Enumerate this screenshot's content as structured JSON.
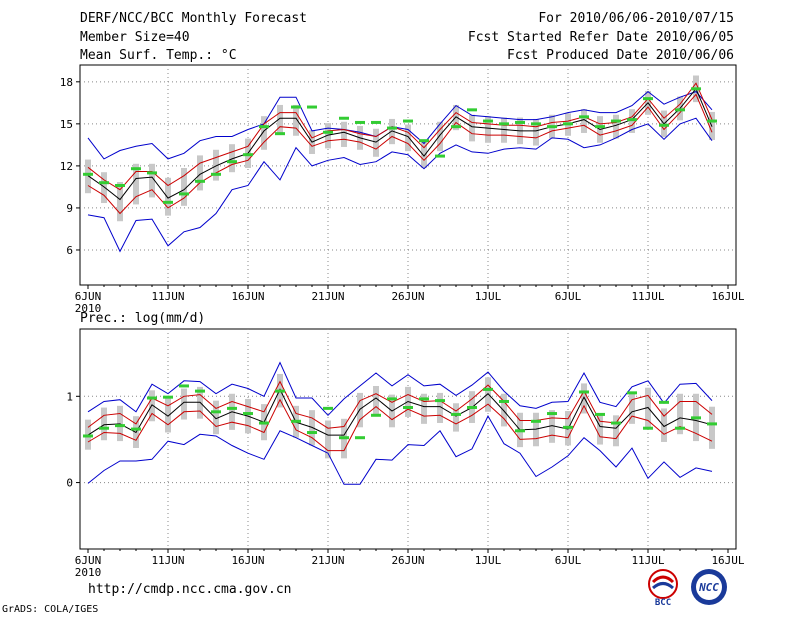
{
  "header": {
    "line1_left": "DERF/NCC/BCC Monthly Forecast",
    "line2_left": "Member Size=40",
    "line3_left": "Mean Surf. Temp.: °C",
    "line1_right": "For 2010/06/06-2010/07/15",
    "line2_right": "Fcst Started Refer Date 2010/06/05",
    "line3_right": "Fcst Produced Date 2010/06/06"
  },
  "footer": {
    "url": "http://cmdp.ncc.cma.gov.cn",
    "credit": "GrADS: COLA/IGES",
    "logo1_text": "BCC",
    "logo2_text": "NCC"
  },
  "chart_data": [
    {
      "type": "line",
      "name": "temperature",
      "title": "Mean Surf. Temp.: °C",
      "x_tick_labels": [
        "6JUN",
        "11JUN",
        "16JUN",
        "21JUN",
        "26JUN",
        "1JUL",
        "6JUL",
        "11JUL",
        "16JUL"
      ],
      "x_tick_days": [
        1,
        6,
        11,
        16,
        21,
        26,
        31,
        36,
        41
      ],
      "year_label": "2010",
      "xlim": [
        0.5,
        41.5
      ],
      "y_ticks": [
        6,
        9,
        12,
        15,
        18
      ],
      "ylim": [
        3.5,
        19.2
      ],
      "days": [
        1,
        2,
        3,
        4,
        5,
        6,
        7,
        8,
        9,
        10,
        11,
        12,
        13,
        14,
        15,
        16,
        17,
        18,
        19,
        20,
        21,
        22,
        23,
        24,
        25,
        26,
        27,
        28,
        29,
        30,
        31,
        32,
        33,
        34,
        35,
        36,
        37,
        38,
        39,
        40
      ],
      "series": [
        {
          "name": "ensemble_max",
          "color": "#0000cc",
          "values": [
            14.0,
            12.5,
            13.1,
            13.4,
            13.6,
            12.5,
            12.9,
            13.8,
            14.1,
            14.1,
            14.6,
            15.0,
            16.9,
            16.9,
            14.5,
            14.7,
            14.6,
            14.4,
            14.1,
            14.8,
            14.6,
            13.6,
            15.0,
            16.3,
            15.6,
            15.5,
            15.4,
            15.3,
            15.3,
            15.5,
            15.8,
            16.0,
            15.8,
            15.8,
            16.3,
            17.3,
            16.4,
            16.9,
            17.3,
            16.0
          ]
        },
        {
          "name": "ensemble_mean_plus_std",
          "color": "#cc0000",
          "values": [
            11.9,
            11.0,
            10.3,
            11.6,
            11.6,
            10.6,
            11.3,
            12.2,
            12.6,
            13.0,
            13.4,
            15.0,
            15.8,
            15.8,
            14.0,
            14.5,
            14.6,
            14.3,
            14.1,
            14.8,
            14.4,
            13.3,
            14.6,
            15.8,
            15.1,
            15.0,
            14.9,
            14.9,
            14.8,
            15.1,
            15.2,
            15.5,
            15.0,
            15.1,
            15.5,
            16.8,
            15.4,
            16.4,
            17.9,
            15.3
          ]
        },
        {
          "name": "ensemble_mean",
          "color": "#000000",
          "values": [
            11.3,
            10.5,
            9.6,
            11.1,
            11.2,
            9.7,
            10.3,
            11.4,
            12.0,
            12.5,
            12.9,
            14.5,
            15.4,
            15.4,
            13.7,
            14.2,
            14.4,
            14.0,
            13.7,
            14.5,
            14.1,
            12.7,
            14.2,
            15.5,
            14.8,
            14.7,
            14.6,
            14.5,
            14.5,
            14.8,
            15.0,
            15.3,
            14.6,
            14.9,
            15.3,
            16.5,
            15.0,
            16.1,
            17.5,
            14.8
          ]
        },
        {
          "name": "ensemble_mean_minus_std",
          "color": "#cc0000",
          "values": [
            10.6,
            9.9,
            8.6,
            9.8,
            10.3,
            9.0,
            9.7,
            10.8,
            11.5,
            12.1,
            12.4,
            13.7,
            14.8,
            14.7,
            13.4,
            13.8,
            13.9,
            13.7,
            13.2,
            14.1,
            13.6,
            12.4,
            13.6,
            15.1,
            14.3,
            14.2,
            14.2,
            14.1,
            14.0,
            14.5,
            14.7,
            14.9,
            14.2,
            14.5,
            14.9,
            16.2,
            14.6,
            15.8,
            17.1,
            14.4
          ]
        },
        {
          "name": "ensemble_min",
          "color": "#0000cc",
          "values": [
            8.5,
            8.3,
            5.9,
            8.1,
            8.2,
            6.3,
            7.3,
            7.6,
            8.6,
            10.3,
            10.6,
            12.3,
            11.0,
            13.3,
            12.0,
            12.4,
            12.6,
            12.1,
            12.3,
            13.0,
            12.8,
            11.8,
            12.9,
            13.5,
            13.0,
            12.9,
            13.2,
            13.3,
            13.2,
            14.0,
            13.9,
            13.3,
            13.5,
            14.0,
            14.6,
            15.0,
            13.9,
            15.0,
            15.4,
            13.8
          ]
        },
        {
          "name": "observation_marker",
          "color": "#33cc33",
          "values": [
            11.4,
            10.8,
            10.6,
            11.8,
            11.5,
            9.4,
            10.0,
            10.9,
            11.4,
            12.3,
            12.8,
            14.8,
            14.3,
            16.2,
            16.2,
            14.4,
            15.4,
            15.1,
            15.1,
            14.7,
            15.2,
            13.8,
            12.7,
            14.8,
            16.0,
            15.2,
            15.0,
            15.1,
            15.0,
            14.8,
            15.0,
            15.5,
            14.8,
            15.2,
            15.3,
            16.8,
            14.9,
            16.0,
            17.5,
            15.2
          ]
        }
      ],
      "spread_bar_color": "#c8c8c8"
    },
    {
      "type": "line",
      "name": "precipitation",
      "title": "Prec.: log(mm/d)",
      "x_tick_labels": [
        "6JUN",
        "11JUN",
        "16JUN",
        "21JUN",
        "26JUN",
        "1JUL",
        "6JUL",
        "11JUL",
        "16JUL"
      ],
      "x_tick_days": [
        1,
        6,
        11,
        16,
        21,
        26,
        31,
        36,
        41
      ],
      "year_label": "2010",
      "xlim": [
        0.5,
        41.5
      ],
      "y_ticks": [
        0,
        1
      ],
      "ylim": [
        -0.77,
        1.78
      ],
      "days": [
        1,
        2,
        3,
        4,
        5,
        6,
        7,
        8,
        9,
        10,
        11,
        12,
        13,
        14,
        15,
        16,
        17,
        18,
        19,
        20,
        21,
        22,
        23,
        24,
        25,
        26,
        27,
        28,
        29,
        30,
        31,
        32,
        33,
        34,
        35,
        36,
        37,
        38,
        39,
        40
      ],
      "series": [
        {
          "name": "ensemble_max",
          "color": "#0000cc",
          "values": [
            0.82,
            0.94,
            0.96,
            0.82,
            1.14,
            1.03,
            1.18,
            1.17,
            1.03,
            1.14,
            1.09,
            1.0,
            1.39,
            0.98,
            0.98,
            0.78,
            0.97,
            1.12,
            1.27,
            1.12,
            1.25,
            1.12,
            1.14,
            1.01,
            1.13,
            1.28,
            1.06,
            0.89,
            0.86,
            0.93,
            0.94,
            1.27,
            0.93,
            0.88,
            1.11,
            1.18,
            0.92,
            1.14,
            1.15,
            0.95
          ]
        },
        {
          "name": "ensemble_mean_plus_std",
          "color": "#cc0000",
          "values": [
            0.64,
            0.78,
            0.8,
            0.68,
            0.98,
            0.89,
            1.0,
            1.02,
            0.86,
            0.94,
            0.88,
            0.82,
            1.17,
            0.8,
            0.75,
            0.63,
            0.65,
            0.95,
            1.03,
            0.93,
            1.02,
            0.94,
            0.95,
            0.83,
            0.97,
            1.13,
            0.94,
            0.72,
            0.72,
            0.75,
            0.74,
            1.06,
            0.71,
            0.69,
            0.96,
            1.01,
            0.77,
            0.94,
            0.94,
            0.79
          ]
        },
        {
          "name": "ensemble_mean",
          "color": "#000000",
          "values": [
            0.55,
            0.67,
            0.68,
            0.58,
            0.9,
            0.77,
            0.93,
            0.93,
            0.74,
            0.82,
            0.77,
            0.7,
            1.08,
            0.7,
            0.64,
            0.55,
            0.55,
            0.85,
            0.98,
            0.83,
            0.94,
            0.88,
            0.88,
            0.77,
            0.87,
            1.03,
            0.83,
            0.61,
            0.62,
            0.66,
            0.62,
            0.99,
            0.65,
            0.63,
            0.82,
            0.87,
            0.65,
            0.75,
            0.72,
            0.67
          ]
        },
        {
          "name": "ensemble_mean_minus_std",
          "color": "#cc0000",
          "values": [
            0.47,
            0.58,
            0.57,
            0.49,
            0.8,
            0.67,
            0.82,
            0.83,
            0.65,
            0.7,
            0.66,
            0.58,
            0.96,
            0.61,
            0.52,
            0.37,
            0.37,
            0.73,
            0.88,
            0.73,
            0.85,
            0.77,
            0.78,
            0.68,
            0.78,
            0.91,
            0.74,
            0.5,
            0.51,
            0.55,
            0.52,
            0.89,
            0.53,
            0.51,
            0.77,
            0.72,
            0.56,
            0.65,
            0.57,
            0.48
          ]
        },
        {
          "name": "ensemble_min",
          "color": "#0000cc",
          "values": [
            -0.01,
            0.14,
            0.25,
            0.25,
            0.27,
            0.48,
            0.44,
            0.56,
            0.54,
            0.43,
            0.34,
            0.27,
            0.6,
            0.52,
            0.43,
            0.34,
            -0.02,
            -0.02,
            0.27,
            0.26,
            0.44,
            0.43,
            0.6,
            0.3,
            0.39,
            0.77,
            0.45,
            0.34,
            0.07,
            0.18,
            0.31,
            0.52,
            0.37,
            0.18,
            0.4,
            0.05,
            0.24,
            0.06,
            0.17,
            0.13
          ]
        },
        {
          "name": "observation_marker",
          "color": "#33cc33",
          "values": [
            0.54,
            0.63,
            0.66,
            0.62,
            0.98,
            0.99,
            1.12,
            1.06,
            0.82,
            0.86,
            0.8,
            0.69,
            1.06,
            0.71,
            0.58,
            0.86,
            0.52,
            0.52,
            0.78,
            0.97,
            0.87,
            0.97,
            0.95,
            0.79,
            0.87,
            1.08,
            0.94,
            0.6,
            0.71,
            0.8,
            0.64,
            1.05,
            0.79,
            0.69,
            1.04,
            0.63,
            0.93,
            0.63,
            0.75,
            0.68
          ]
        }
      ],
      "spread_bar_color": "#c8c8c8"
    }
  ]
}
